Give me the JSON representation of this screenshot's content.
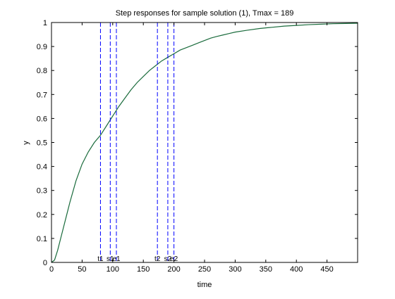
{
  "chart_data": {
    "type": "line",
    "title": "Step responses for sample solution (1), Tmax = 189",
    "xlabel": "time",
    "ylabel": "y",
    "xlim": [
      0,
      500
    ],
    "ylim": [
      0,
      1
    ],
    "x_ticks": [
      0,
      50,
      100,
      150,
      200,
      250,
      300,
      350,
      400,
      450
    ],
    "y_ticks": [
      0,
      0.1,
      0.2,
      0.3,
      0.4,
      0.5,
      0.6,
      0.7,
      0.8,
      0.9,
      1
    ],
    "x_tick_labels": [
      "0",
      "50",
      "100",
      "150",
      "200",
      "250",
      "300",
      "350",
      "400",
      "450"
    ],
    "y_tick_labels": [
      "0",
      "0.1",
      "0.2",
      "0.3",
      "0.4",
      "0.5",
      "0.6",
      "0.7",
      "0.8",
      "0.9",
      "1"
    ],
    "grid": false,
    "series": [
      {
        "color": "#1a6b3c",
        "x": [
          0,
          5,
          10,
          15,
          20,
          25,
          30,
          40,
          50,
          60,
          70,
          80,
          90,
          100,
          110,
          120,
          130,
          140,
          150,
          160,
          170,
          180,
          190,
          200,
          210,
          220,
          230,
          240,
          250,
          260,
          270,
          280,
          290,
          300,
          320,
          340,
          360,
          380,
          400,
          420,
          440,
          460,
          480,
          500
        ],
        "values": [
          0,
          0.01,
          0.05,
          0.1,
          0.15,
          0.2,
          0.25,
          0.34,
          0.41,
          0.46,
          0.5,
          0.53,
          0.57,
          0.61,
          0.65,
          0.685,
          0.72,
          0.75,
          0.775,
          0.8,
          0.82,
          0.84,
          0.855,
          0.87,
          0.885,
          0.895,
          0.905,
          0.915,
          0.925,
          0.935,
          0.942,
          0.948,
          0.954,
          0.96,
          0.968,
          0.975,
          0.98,
          0.985,
          0.988,
          0.991,
          0.993,
          0.995,
          0.996,
          0.997
        ]
      }
    ],
    "vertical_markers": [
      {
        "x": 80,
        "label": "t1"
      },
      {
        "x": 96,
        "label": "s1"
      },
      {
        "x": 106,
        "label": "e1"
      },
      {
        "x": 173,
        "label": "t2"
      },
      {
        "x": 190,
        "label": "s2"
      },
      {
        "x": 200,
        "label": "e2"
      }
    ],
    "marker_color": "#0000ff",
    "axis_color": "#000000"
  }
}
